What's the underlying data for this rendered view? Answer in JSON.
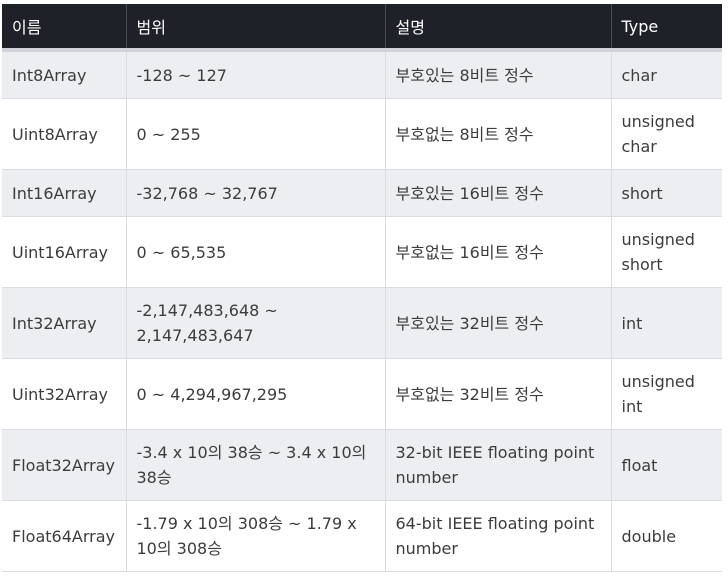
{
  "table": {
    "headers": [
      "이름",
      "범위",
      "설명",
      "Type"
    ],
    "rows": [
      {
        "name": "Int8Array",
        "range": "-128 ~ 127",
        "desc": "부호있는 8비트 정수",
        "type": "char"
      },
      {
        "name": "Uint8Array",
        "range": "0 ~ 255",
        "desc": "부호없는 8비트 정수",
        "type": "unsigned char"
      },
      {
        "name": "Int16Array",
        "range": "-32,768 ~ 32,767",
        "desc": "부호있는 16비트 정수",
        "type": "short"
      },
      {
        "name": "Uint16Array",
        "range": "0 ~ 65,535",
        "desc": "부호없는 16비트 정수",
        "type": "unsigned short"
      },
      {
        "name": "Int32Array",
        "range": "-2,147,483,648 ~ 2,147,483,647",
        "desc": "부호있는 32비트 정수",
        "type": "int"
      },
      {
        "name": "Uint32Array",
        "range": "0 ~ 4,294,967,295",
        "desc": "부호없는 32비트 정수",
        "type": "unsigned int"
      },
      {
        "name": "Float32Array",
        "range": "-3.4 x 10의 38승 ~ 3.4 x 10의 38승",
        "desc": "32-bit IEEE floating point number",
        "type": "float"
      },
      {
        "name": "Float64Array",
        "range": "-1.79 x 10의 308승 ~ 1.79 x 10의 308승",
        "desc": "64-bit IEEE floating point number",
        "type": "double"
      }
    ]
  }
}
